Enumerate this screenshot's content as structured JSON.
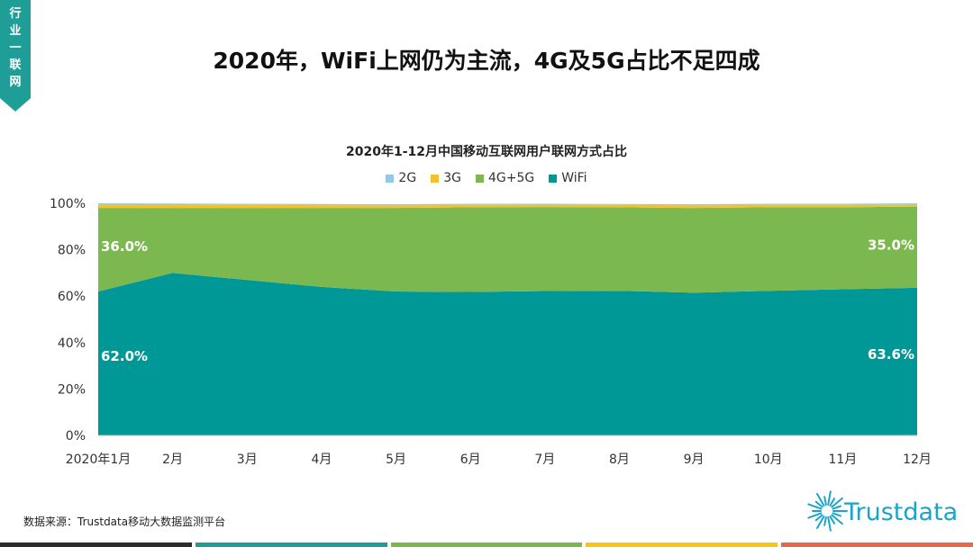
{
  "side_tab": {
    "text": "行业一联网",
    "color": "#1f9e97"
  },
  "page_title": "2020年，WiFi上网仍为主流，4G及5G占比不足四成",
  "source": "数据来源：Trustdata移动大数据监测平台",
  "logo": {
    "text": "Trustdata",
    "color": "#1aa5c8"
  },
  "footer_colors": [
    "#2b2b2b",
    "#1f9e97",
    "#7cb850",
    "#f5c518",
    "#e8664a"
  ],
  "chart_data": {
    "type": "area",
    "stacked": true,
    "title": "2020年1-12月中国移动互联网用户联网方式占比",
    "categories": [
      "2020年1月",
      "2月",
      "3月",
      "4月",
      "5月",
      "6月",
      "7月",
      "8月",
      "9月",
      "10月",
      "11月",
      "12月"
    ],
    "ylim": [
      0,
      100
    ],
    "y_ticks": [
      "0%",
      "20%",
      "40%",
      "60%",
      "80%",
      "100%"
    ],
    "grid": false,
    "legend_position": "top",
    "series": [
      {
        "name": "2G",
        "color": "#92c9e3",
        "values": [
          0.5,
          0.5,
          0.5,
          0.5,
          0.5,
          0.5,
          0.4,
          0.4,
          0.5,
          0.5,
          0.5,
          0.4
        ]
      },
      {
        "name": "3G",
        "color": "#f2c12e",
        "values": [
          1.5,
          1.4,
          1.3,
          1.2,
          1.1,
          1.0,
          1.0,
          1.0,
          1.1,
          1.0,
          1.0,
          1.0
        ]
      },
      {
        "name": "4G+5G",
        "color": "#7cb850",
        "values": [
          36.0,
          28.0,
          31.0,
          34.0,
          36.0,
          36.5,
          36.2,
          36.0,
          36.5,
          36.0,
          35.3,
          35.0
        ]
      },
      {
        "name": "WiFi",
        "color": "#009896",
        "values": [
          62.0,
          70.0,
          67.0,
          64.0,
          62.0,
          61.8,
          62.2,
          62.3,
          61.5,
          62.3,
          63.0,
          63.6
        ]
      }
    ],
    "data_labels": [
      {
        "series": "4G+5G",
        "index": 0,
        "text": "36.0%"
      },
      {
        "series": "4G+5G",
        "index": 11,
        "text": "35.0%"
      },
      {
        "series": "WiFi",
        "index": 0,
        "text": "62.0%"
      },
      {
        "series": "WiFi",
        "index": 11,
        "text": "63.6%"
      }
    ]
  }
}
